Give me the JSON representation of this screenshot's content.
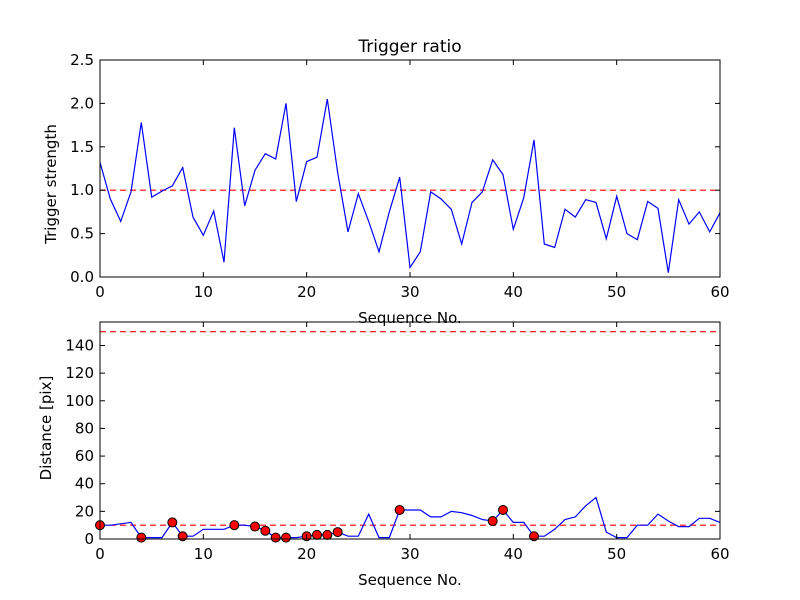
{
  "colors": {
    "line": "#0000ff",
    "threshold": "#ff0000",
    "marker": "#ff0000",
    "axes": "#000000",
    "background": "#ffffff"
  },
  "chart_data": [
    {
      "type": "line",
      "title": "Trigger ratio",
      "xlabel": "Sequence No.",
      "ylabel": "Trigger strength",
      "xlim": [
        0,
        60
      ],
      "ylim": [
        0,
        2.5
      ],
      "xticks": [
        "0",
        "10",
        "20",
        "30",
        "40",
        "50",
        "60"
      ],
      "yticks": [
        "0.0",
        "0.5",
        "1.0",
        "1.5",
        "2.0",
        "2.5"
      ],
      "threshold_lines": [
        1.0
      ],
      "series": [
        {
          "name": "trigger strength",
          "x": [
            0,
            1,
            2,
            3,
            4,
            5,
            6,
            7,
            8,
            9,
            10,
            11,
            12,
            13,
            14,
            15,
            16,
            17,
            18,
            19,
            20,
            21,
            22,
            23,
            24,
            25,
            26,
            27,
            28,
            29,
            30,
            31,
            32,
            33,
            34,
            35,
            36,
            37,
            38,
            39,
            40,
            41,
            42,
            43,
            44,
            45,
            46,
            47,
            48,
            49,
            50,
            51,
            52,
            53,
            54,
            55,
            56,
            57,
            58,
            59,
            60
          ],
          "y": [
            1.32,
            0.9,
            0.64,
            0.98,
            1.78,
            0.92,
            0.99,
            1.05,
            1.26,
            0.69,
            0.48,
            0.76,
            0.17,
            1.72,
            0.82,
            1.23,
            1.42,
            1.36,
            2.0,
            0.87,
            1.33,
            1.38,
            2.05,
            1.2,
            0.52,
            0.96,
            0.64,
            0.29,
            0.75,
            1.15,
            0.11,
            0.29,
            0.98,
            0.9,
            0.78,
            0.38,
            0.86,
            0.98,
            1.35,
            1.18,
            0.55,
            0.91,
            1.58,
            0.38,
            0.34,
            0.78,
            0.69,
            0.89,
            0.86,
            0.44,
            0.93,
            0.5,
            0.43,
            0.87,
            0.79,
            0.05,
            0.89,
            0.61,
            0.75,
            0.52,
            0.74
          ]
        }
      ]
    },
    {
      "type": "line",
      "title": "",
      "xlabel": "Sequence No.",
      "ylabel": "Distance [pix]",
      "xlim": [
        0,
        60
      ],
      "ylim": [
        0,
        157
      ],
      "xticks": [
        "0",
        "10",
        "20",
        "30",
        "40",
        "50",
        "60"
      ],
      "yticks": [
        "0",
        "20",
        "40",
        "60",
        "80",
        "100",
        "120",
        "140"
      ],
      "threshold_lines": [
        10,
        150
      ],
      "series": [
        {
          "name": "distance",
          "x": [
            0,
            1,
            2,
            3,
            4,
            5,
            6,
            7,
            8,
            9,
            10,
            11,
            12,
            13,
            14,
            15,
            16,
            17,
            18,
            19,
            20,
            21,
            22,
            23,
            24,
            25,
            26,
            27,
            28,
            29,
            30,
            31,
            32,
            33,
            34,
            35,
            36,
            37,
            38,
            39,
            40,
            41,
            42,
            43,
            44,
            45,
            46,
            47,
            48,
            49,
            50,
            51,
            52,
            53,
            54,
            55,
            56,
            57,
            58,
            59,
            60
          ],
          "y": [
            10,
            10,
            11,
            12,
            1,
            1,
            1,
            12,
            2,
            2,
            7,
            7,
            7,
            10,
            10,
            9,
            6,
            1,
            1,
            1,
            2,
            3,
            3,
            5,
            2,
            2,
            18,
            1,
            1,
            21,
            21,
            21,
            16,
            16,
            20,
            19,
            17,
            14,
            13,
            21,
            12,
            12,
            2,
            2,
            7,
            14,
            16,
            24,
            30,
            5,
            1,
            1,
            10,
            10,
            18,
            13,
            9,
            9,
            15,
            15,
            12
          ]
        },
        {
          "name": "triggers",
          "x": [
            0,
            4,
            7,
            8,
            13,
            15,
            16,
            17,
            18,
            20,
            21,
            22,
            23,
            29,
            38,
            39,
            42
          ],
          "y": [
            10,
            1,
            12,
            2,
            10,
            9,
            6,
            1,
            1,
            2,
            3,
            3,
            5,
            21,
            13,
            21,
            2
          ]
        }
      ]
    }
  ]
}
